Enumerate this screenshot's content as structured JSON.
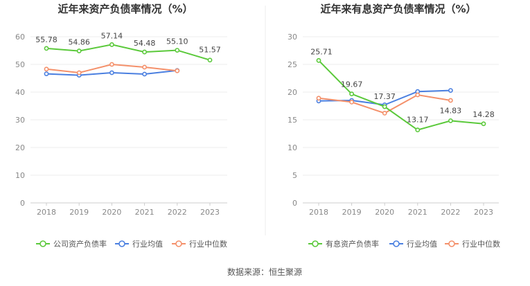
{
  "chart_data": [
    {
      "type": "line",
      "title": "近年来资产负债率情况（%）",
      "categories": [
        "2018",
        "2019",
        "2020",
        "2021",
        "2022",
        "2023"
      ],
      "ylim": [
        0,
        60
      ],
      "yticks": [
        "0",
        "10",
        "20",
        "30",
        "40",
        "50",
        "60"
      ],
      "grid": true,
      "legend_position": "bottom",
      "series": [
        {
          "name": "公司资产负债率",
          "color": "#5ac93a",
          "values": [
            55.78,
            54.86,
            57.14,
            54.48,
            55.1,
            51.57
          ],
          "labels": [
            "55.78",
            "54.86",
            "57.14",
            "54.48",
            "55.10",
            "51.57"
          ]
        },
        {
          "name": "行业均值",
          "color": "#4a7fe0",
          "values": [
            46.6,
            46.1,
            47.0,
            46.5,
            47.8,
            null
          ]
        },
        {
          "name": "行业中位数",
          "color": "#f4906a",
          "values": [
            48.3,
            47.0,
            50.0,
            49.0,
            47.7,
            null
          ]
        }
      ]
    },
    {
      "type": "line",
      "title": "近年来有息资产负债率情况（%）",
      "categories": [
        "2018",
        "2019",
        "2020",
        "2021",
        "2022",
        "2023"
      ],
      "ylim": [
        0,
        30
      ],
      "yticks": [
        "0",
        "5",
        "10",
        "15",
        "20",
        "25",
        "30"
      ],
      "grid": true,
      "legend_position": "bottom",
      "series": [
        {
          "name": "有息资产负债率",
          "color": "#5ac93a",
          "values": [
            25.71,
            19.67,
            17.37,
            13.17,
            14.83,
            14.28
          ],
          "labels": [
            "25.71",
            "19.67",
            "17.37",
            "13.17",
            "14.83",
            "14.28"
          ]
        },
        {
          "name": "行业均值",
          "color": "#4a7fe0",
          "values": [
            18.4,
            18.5,
            17.7,
            20.1,
            20.3,
            null
          ]
        },
        {
          "name": "行业中位数",
          "color": "#f4906a",
          "values": [
            18.9,
            18.2,
            16.2,
            19.5,
            18.5,
            null
          ]
        }
      ]
    }
  ],
  "source": "数据来源：恒生聚源"
}
